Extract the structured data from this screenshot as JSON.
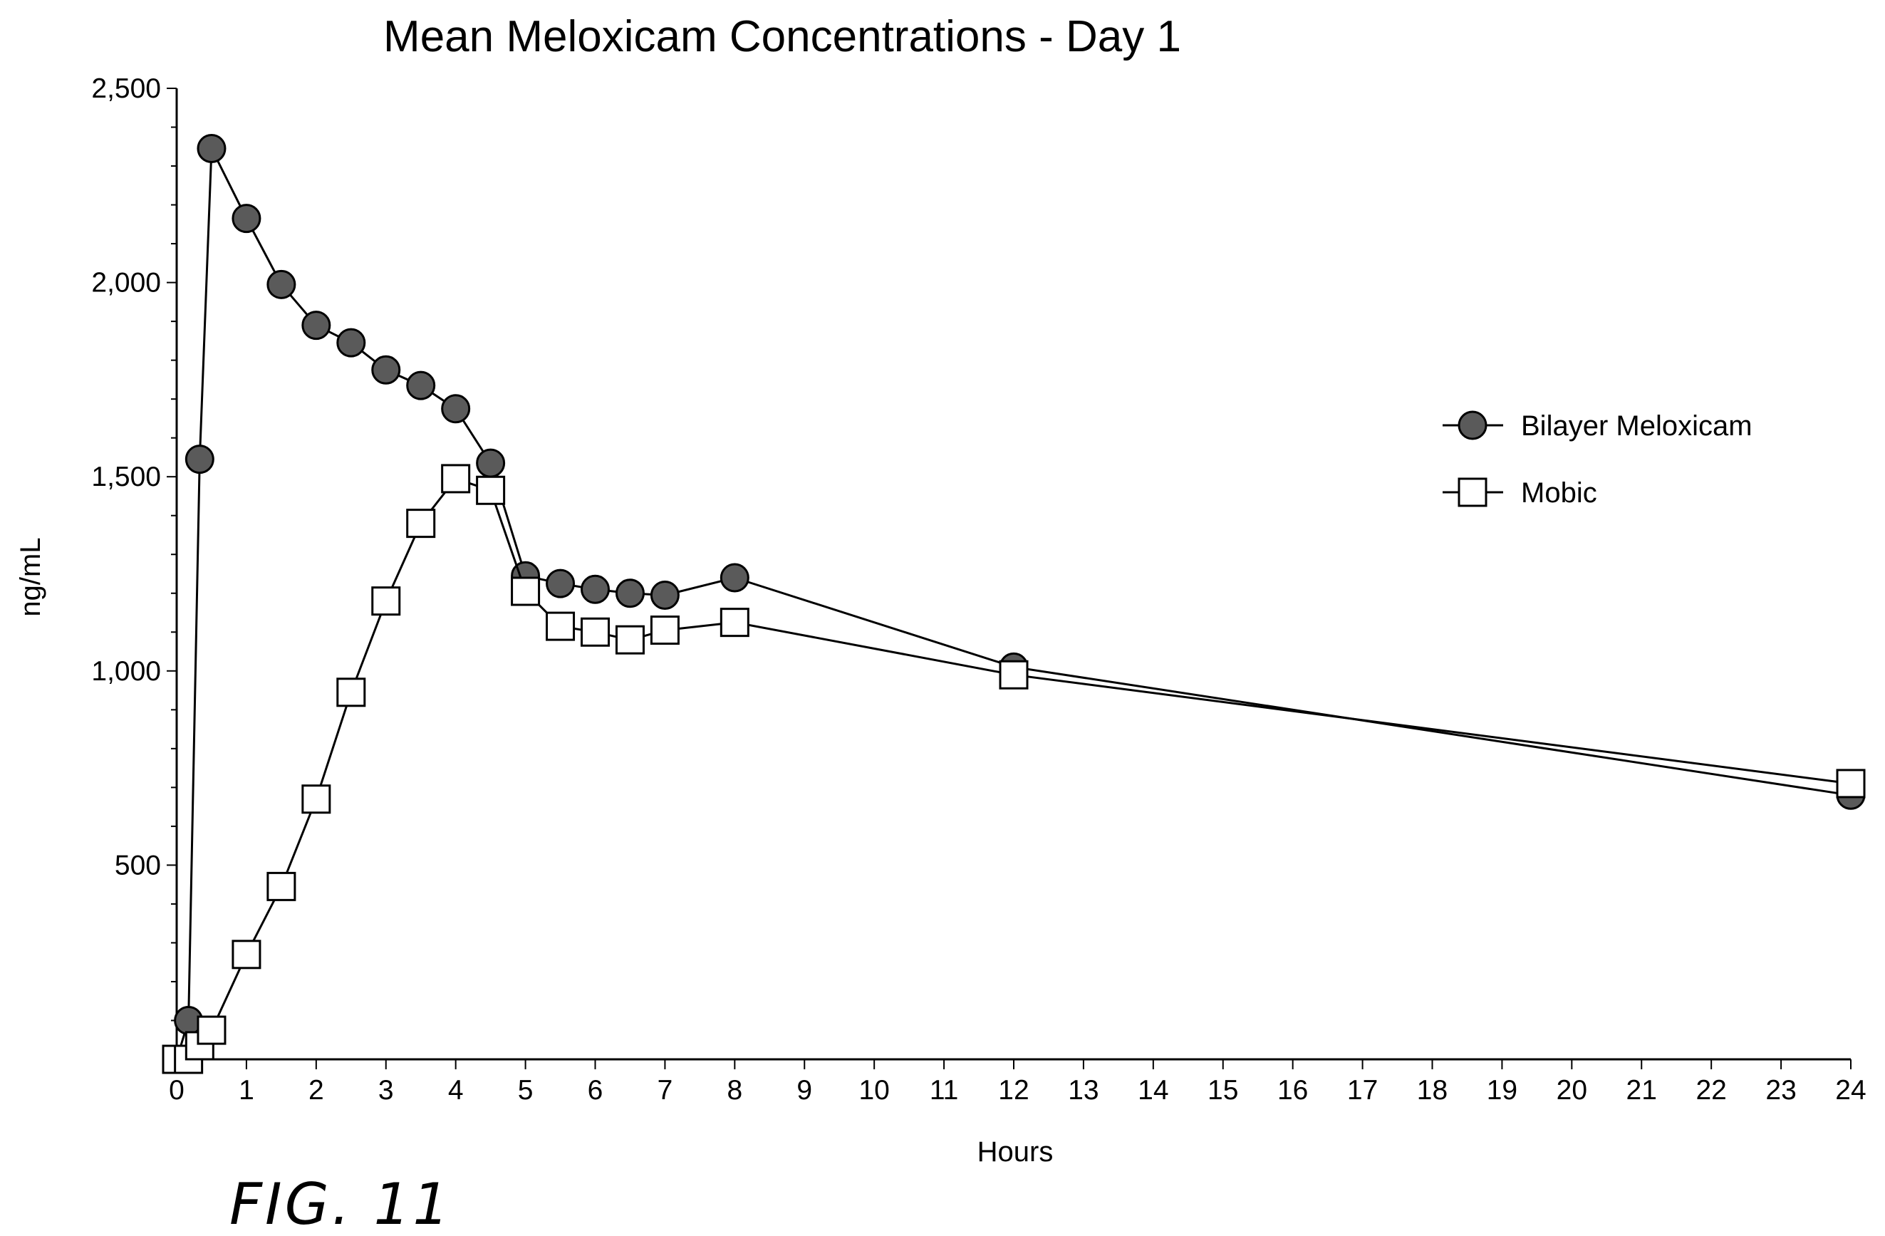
{
  "figure_label": "FIG. 11",
  "chart_data": {
    "type": "line",
    "title": "Mean Meloxicam Concentrations - Day 1",
    "xlabel": "Hours",
    "ylabel": "ng/mL",
    "xlim": [
      0,
      24
    ],
    "ylim": [
      0,
      2500
    ],
    "x_ticks": [
      0,
      1,
      2,
      3,
      4,
      5,
      6,
      7,
      8,
      9,
      10,
      11,
      12,
      13,
      14,
      15,
      16,
      17,
      18,
      19,
      20,
      21,
      22,
      23,
      24
    ],
    "y_ticks": [
      500,
      1000,
      1500,
      2000,
      2500
    ],
    "y_tick_labels": [
      "500",
      "1,000",
      "1,500",
      "2,000",
      "2,500"
    ],
    "grid": false,
    "legend_position": "right",
    "series": [
      {
        "name": "Bilayer Meloxicam",
        "marker": "circle",
        "marker_fill": "#5a5a5a",
        "x": [
          0,
          0.17,
          0.33,
          0.5,
          1,
          1.5,
          2,
          2.5,
          3,
          3.5,
          4,
          4.5,
          5,
          5.5,
          6,
          6.5,
          7,
          8,
          12,
          24
        ],
        "y": [
          0,
          100,
          1545,
          2345,
          2165,
          1995,
          1890,
          1845,
          1775,
          1735,
          1675,
          1535,
          1245,
          1225,
          1210,
          1200,
          1195,
          1240,
          1010,
          680
        ]
      },
      {
        "name": "Mobic",
        "marker": "square",
        "marker_fill": "#ffffff",
        "x": [
          0,
          0.17,
          0.33,
          0.5,
          1,
          1.5,
          2,
          2.5,
          3,
          3.5,
          4,
          4.5,
          5,
          5.5,
          6,
          6.5,
          7,
          8,
          12,
          24
        ],
        "y": [
          0,
          0,
          35,
          75,
          270,
          445,
          670,
          945,
          1180,
          1380,
          1495,
          1465,
          1205,
          1115,
          1100,
          1080,
          1105,
          1125,
          990,
          710
        ]
      }
    ]
  }
}
